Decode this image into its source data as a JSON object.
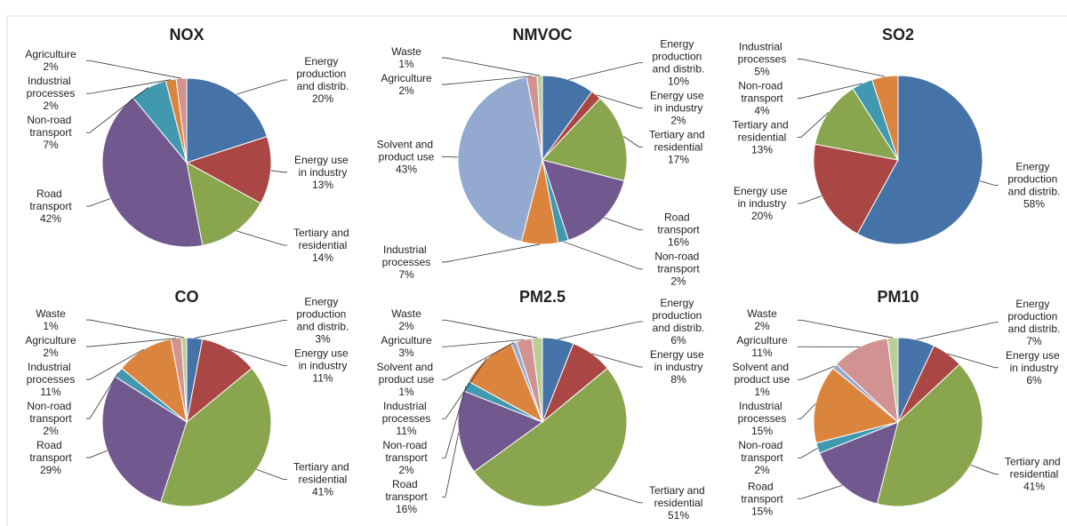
{
  "chart_data": [
    {
      "type": "pie",
      "title": "NOX",
      "categories": [
        "Energy production and distrib.",
        "Energy use in industry",
        "Tertiary and residential",
        "Road transport",
        "Non-road transport",
        "Industrial processes",
        "Agriculture"
      ],
      "values": [
        20,
        13,
        14,
        42,
        7,
        2,
        2
      ],
      "value_labels": [
        "20%",
        "13%",
        "14%",
        "42%",
        "7%",
        "2%",
        "2%"
      ],
      "colors": [
        "#4572a7",
        "#aa4643",
        "#89a54e",
        "#71588f",
        "#4198af",
        "#db843d",
        "#d19392"
      ]
    },
    {
      "type": "pie",
      "title": "NMVOC",
      "categories": [
        "Energy production and distrib.",
        "Energy use in industry",
        "Tertiary and residential",
        "Road transport",
        "Non-road transport",
        "Industrial processes",
        "Solvent and product use",
        "Agriculture",
        "Waste"
      ],
      "values": [
        10,
        2,
        17,
        16,
        2,
        7,
        43,
        2,
        1
      ],
      "value_labels": [
        "10%",
        "2%",
        "17%",
        "16%",
        "2%",
        "7%",
        "43%",
        "2%",
        "1%"
      ],
      "colors": [
        "#4572a7",
        "#aa4643",
        "#89a54e",
        "#71588f",
        "#4198af",
        "#db843d",
        "#93a9cf",
        "#d19392",
        "#b9cd96"
      ]
    },
    {
      "type": "pie",
      "title": "SO2",
      "categories": [
        "Energy production and distrib.",
        "Energy use in industry",
        "Tertiary and residential",
        "Non-road transport",
        "Industrial processes"
      ],
      "values": [
        58,
        20,
        13,
        4,
        5
      ],
      "value_labels": [
        "58%",
        "20%",
        "13%",
        "4%",
        "5%"
      ],
      "colors": [
        "#4572a7",
        "#aa4643",
        "#89a54e",
        "#4198af",
        "#db843d"
      ]
    },
    {
      "type": "pie",
      "title": "CO",
      "categories": [
        "Energy production and distrib.",
        "Energy use in industry",
        "Tertiary and residential",
        "Road transport",
        "Non-road transport",
        "Industrial processes",
        "Agriculture",
        "Waste"
      ],
      "values": [
        3,
        11,
        41,
        29,
        2,
        11,
        2,
        1
      ],
      "value_labels": [
        "3%",
        "11%",
        "41%",
        "29%",
        "2%",
        "11%",
        "2%",
        "1%"
      ],
      "colors": [
        "#4572a7",
        "#aa4643",
        "#89a54e",
        "#71588f",
        "#4198af",
        "#db843d",
        "#d19392",
        "#b9cd96"
      ]
    },
    {
      "type": "pie",
      "title": "PM2.5",
      "categories": [
        "Energy production and distrib.",
        "Energy use in industry",
        "Tertiary and residential",
        "Road transport",
        "Non-road transport",
        "Industrial processes",
        "Solvent and product use",
        "Agriculture",
        "Waste"
      ],
      "values": [
        6,
        8,
        51,
        16,
        2,
        11,
        1,
        3,
        2
      ],
      "value_labels": [
        "6%",
        "8%",
        "51%",
        "16%",
        "2%",
        "11%",
        "1%",
        "3%",
        "2%"
      ],
      "colors": [
        "#4572a7",
        "#aa4643",
        "#89a54e",
        "#71588f",
        "#4198af",
        "#db843d",
        "#93a9cf",
        "#d19392",
        "#b9cd96"
      ]
    },
    {
      "type": "pie",
      "title": "PM10",
      "categories": [
        "Energy production and distrib.",
        "Energy use in industry",
        "Tertiary and residential",
        "Road transport",
        "Non-road transport",
        "Industrial processes",
        "Solvent and product use",
        "Agriculture",
        "Waste"
      ],
      "values": [
        7,
        6,
        41,
        15,
        2,
        15,
        1,
        11,
        2
      ],
      "value_labels": [
        "7%",
        "6%",
        "41%",
        "15%",
        "2%",
        "15%",
        "1%",
        "11%",
        "2%"
      ],
      "colors": [
        "#4572a7",
        "#aa4643",
        "#89a54e",
        "#71588f",
        "#4198af",
        "#db843d",
        "#93a9cf",
        "#d19392",
        "#b9cd96"
      ]
    }
  ]
}
